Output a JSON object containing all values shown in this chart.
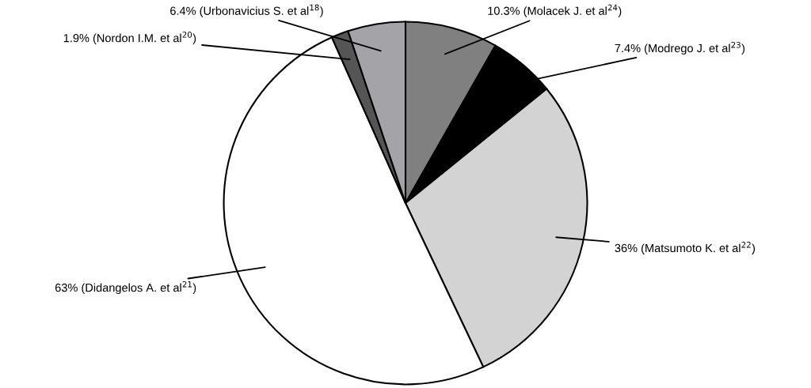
{
  "chart_data": {
    "type": "pie",
    "categories": [
      "10.3% (Molacek J. et al$^{24}$)",
      "7.4% (Modrego J. et al$^{23}$)",
      "36% (Matsumoto K. et al$^{22}$)",
      "63% (Didangelos A. et al$^{21}$)",
      "1.9% (Nordon I.M. et al$^{20}$)",
      "6.4% (Urbonavicius S. et al$^{18}$)"
    ],
    "values": [
      10.3,
      7.4,
      36,
      63,
      1.9,
      6.4
    ],
    "colors": [
      "#808080",
      "#000000",
      "#d3d3d3",
      "#ffffff",
      "#555555",
      "#a3a3a8"
    ],
    "legend": false
  }
}
